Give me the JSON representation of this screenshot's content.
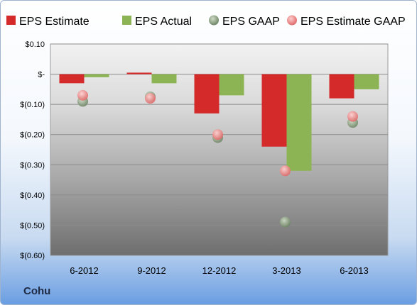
{
  "company": "Cohu",
  "colors": {
    "estimate": "#d42a2a",
    "actual": "#8db454",
    "gaap": "#8ea485",
    "estimate_gaap": "#ef8c8c"
  },
  "chart_data": {
    "type": "bar",
    "categories": [
      "6-2012",
      "9-2012",
      "12-2012",
      "3-2013",
      "6-2013"
    ],
    "series": [
      {
        "name": "EPS Estimate",
        "kind": "bar",
        "values": [
          -0.03,
          0.005,
          -0.13,
          -0.24,
          -0.08
        ]
      },
      {
        "name": "EPS Actual",
        "kind": "bar",
        "values": [
          -0.01,
          -0.03,
          -0.07,
          -0.32,
          -0.05
        ]
      },
      {
        "name": "EPS GAAP",
        "kind": "point",
        "values": [
          -0.09,
          -0.075,
          -0.21,
          -0.49,
          -0.16
        ]
      },
      {
        "name": "EPS Estimate GAAP",
        "kind": "point",
        "values": [
          -0.07,
          -0.08,
          -0.2,
          -0.32,
          -0.14
        ]
      }
    ],
    "ylim": [
      -0.6,
      0.1
    ],
    "yticks": [
      {
        "value": 0.1,
        "label": "$0.10"
      },
      {
        "value": 0.0,
        "label": "$-"
      },
      {
        "value": -0.1,
        "label": "$(0.10)"
      },
      {
        "value": -0.2,
        "label": "$(0.20)"
      },
      {
        "value": -0.3,
        "label": "$(0.30)"
      },
      {
        "value": -0.4,
        "label": "$(0.40)"
      },
      {
        "value": -0.5,
        "label": "$(0.50)"
      },
      {
        "value": -0.6,
        "label": "$(0.60)"
      }
    ],
    "grid": true,
    "legend_position": "top"
  }
}
